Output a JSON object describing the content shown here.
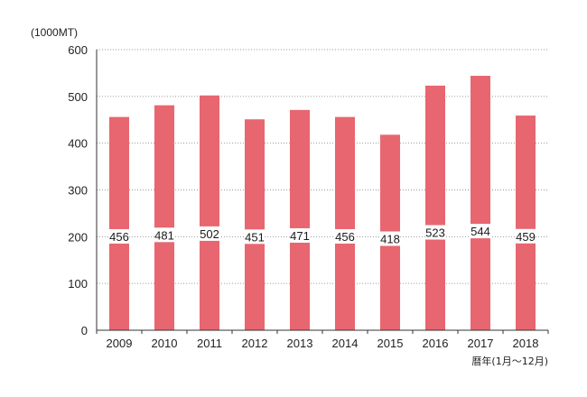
{
  "chart_data": {
    "type": "bar",
    "categories": [
      "2009",
      "2010",
      "2011",
      "2012",
      "2013",
      "2014",
      "2015",
      "2016",
      "2017",
      "2018"
    ],
    "values": [
      456,
      481,
      502,
      451,
      471,
      456,
      418,
      523,
      544,
      459
    ],
    "data_labels": [
      "456",
      "481",
      "502",
      "451",
      "471",
      "456",
      "418",
      "523",
      "544",
      "459"
    ],
    "title": "",
    "ylabel": "(1000MT)",
    "xlabel": "暦年(1月〜12月)",
    "ylim": [
      0,
      600
    ],
    "yticks": [
      0,
      100,
      200,
      300,
      400,
      500,
      600
    ],
    "ytick_labels": [
      "0",
      "100",
      "200",
      "300",
      "400",
      "500",
      "600"
    ],
    "grid": true,
    "legend": "none",
    "colors": {
      "bar": "#e8666f",
      "label_background": "#ffffff",
      "text": "#222222"
    }
  }
}
